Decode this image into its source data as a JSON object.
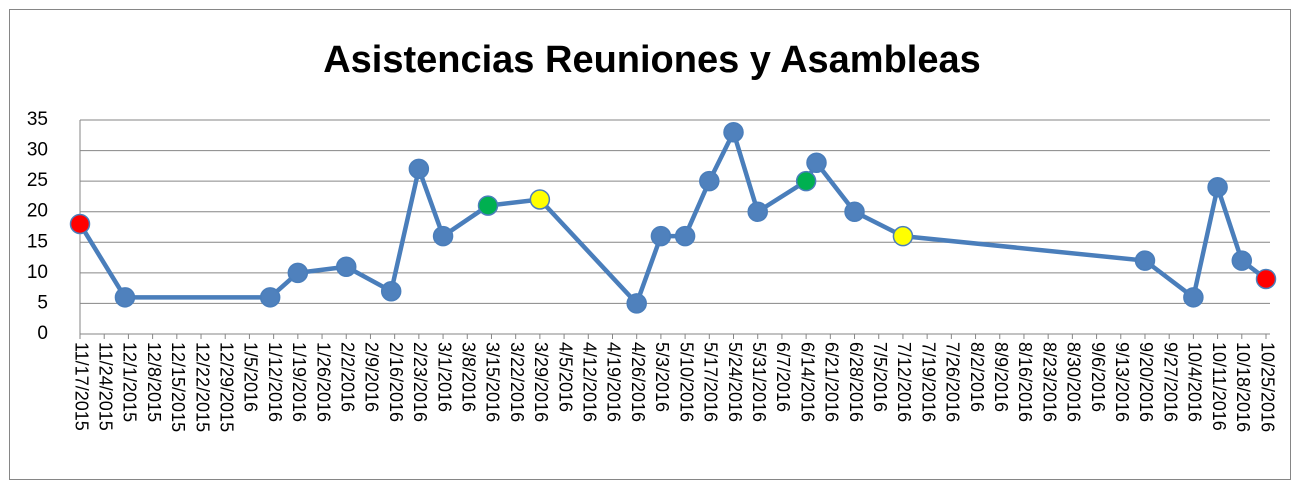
{
  "chart_data": {
    "type": "line",
    "title": "Asistencias Reuniones y Asambleas",
    "x": [
      "11/17/2015",
      "11/30/2015",
      "1/11/2016",
      "1/19/2016",
      "2/2/2016",
      "2/15/2016",
      "2/23/2016",
      "3/1/2016",
      "3/14/2016",
      "3/29/2016",
      "4/26/2016",
      "5/3/2016",
      "5/10/2016",
      "5/17/2016",
      "5/24/2016",
      "5/31/2016",
      "6/14/2016",
      "6/17/2016",
      "6/28/2016",
      "7/12/2016",
      "9/20/2016",
      "10/4/2016",
      "10/11/2016",
      "10/18/2016",
      "10/25/2016"
    ],
    "series": [
      {
        "color": "#4a7ebb",
        "values": [
          18,
          6,
          6,
          10,
          11,
          7,
          27,
          16,
          21,
          22,
          5,
          16,
          16,
          25,
          33,
          20,
          25,
          28,
          20,
          16,
          12,
          6,
          24,
          12,
          9
        ],
        "marker_colors": [
          "#ff0000",
          "#4f81bd",
          "#4f81bd",
          "#4f81bd",
          "#4f81bd",
          "#4f81bd",
          "#4f81bd",
          "#4f81bd",
          "#00b050",
          "#ffff00",
          "#4f81bd",
          "#4f81bd",
          "#4f81bd",
          "#4f81bd",
          "#4f81bd",
          "#4f81bd",
          "#00b050",
          "#4f81bd",
          "#4f81bd",
          "#ffff00",
          "#4f81bd",
          "#4f81bd",
          "#4f81bd",
          "#4f81bd",
          "#ff0000"
        ]
      }
    ],
    "xlim": [
      "11/17/2015",
      "10/25/2016"
    ],
    "xticks": [
      "11/17/2015",
      "11/24/2015",
      "12/1/2015",
      "12/8/2015",
      "12/15/2015",
      "12/22/2015",
      "12/29/2015",
      "1/5/2016",
      "1/12/2016",
      "1/19/2016",
      "1/26/2016",
      "2/2/2016",
      "2/9/2016",
      "2/16/2016",
      "2/23/2016",
      "3/1/2016",
      "3/8/2016",
      "3/15/2016",
      "3/22/2016",
      "3/29/2016",
      "4/5/2016",
      "4/12/2016",
      "4/19/2016",
      "4/26/2016",
      "5/3/2016",
      "5/10/2016",
      "5/17/2016",
      "5/24/2016",
      "5/31/2016",
      "6/7/2016",
      "6/14/2016",
      "6/21/2016",
      "6/28/2016",
      "7/5/2016",
      "7/12/2016",
      "7/19/2016",
      "7/26/2016",
      "8/2/2016",
      "8/9/2016",
      "8/16/2016",
      "8/23/2016",
      "8/30/2016",
      "9/6/2016",
      "9/13/2016",
      "9/20/2016",
      "9/27/2016",
      "10/4/2016",
      "10/11/2016",
      "10/18/2016",
      "10/25/2016"
    ],
    "ylim": [
      0,
      35
    ],
    "yticks": [
      0,
      5,
      10,
      15,
      20,
      25,
      30,
      35
    ],
    "grid": true
  }
}
